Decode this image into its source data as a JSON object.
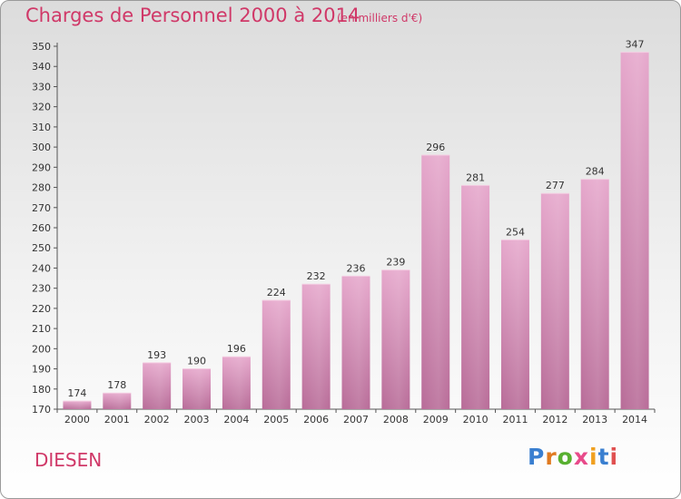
{
  "header": {
    "title": "Charges de Personnel 2000 à 2014",
    "subtitle": "(en milliers d'€)"
  },
  "footer": {
    "commune": "DIESEN",
    "logo": "Proxiti",
    "logo_colors": [
      "#3a7fd0",
      "#e07a20",
      "#58b030",
      "#e84a8a",
      "#f0a020",
      "#3a7fd0",
      "#e05050"
    ]
  },
  "chart_data": {
    "type": "bar",
    "categories": [
      "2000",
      "2001",
      "2002",
      "2003",
      "2004",
      "2005",
      "2006",
      "2007",
      "2008",
      "2009",
      "2010",
      "2011",
      "2012",
      "2013",
      "2014"
    ],
    "values": [
      174,
      178,
      193,
      190,
      196,
      224,
      232,
      236,
      239,
      296,
      281,
      254,
      277,
      284,
      347
    ],
    "title": "Charges de Personnel 2000 à 2014",
    "subtitle": "(en milliers d'€)",
    "xlabel": "",
    "ylabel": "",
    "ylim": [
      170,
      350
    ],
    "ytick_step": 10,
    "grid": false,
    "legend": "none",
    "bar_color": "#d98bb8"
  }
}
